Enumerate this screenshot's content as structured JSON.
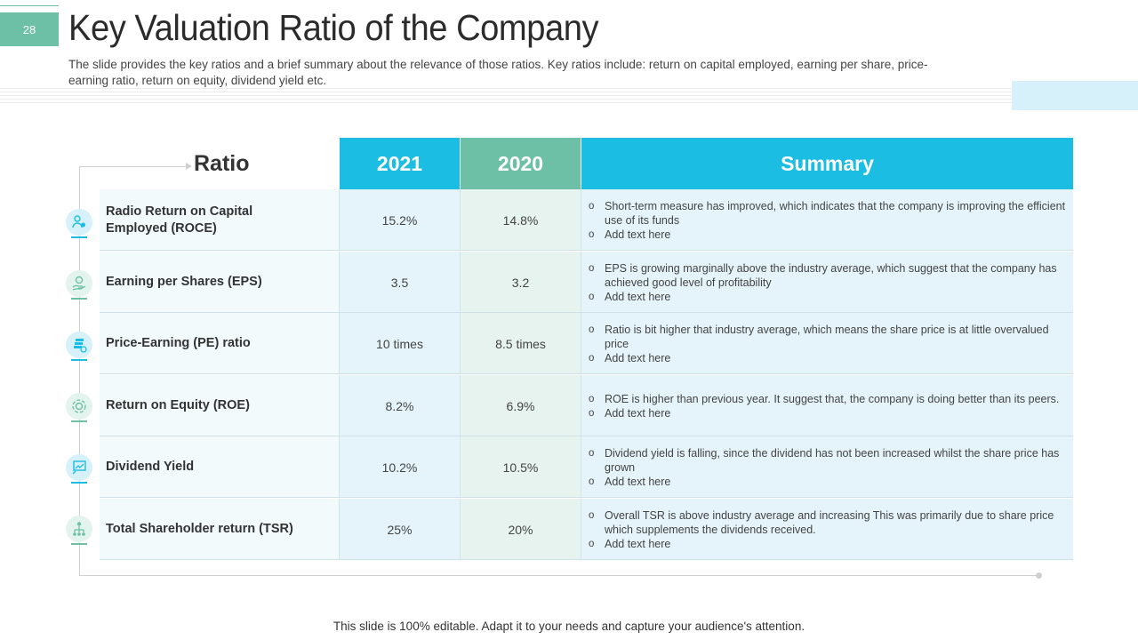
{
  "header": {
    "page_number": "28",
    "title": "Key Valuation Ratio of the Company",
    "subtitle": "The slide provides the key ratios and a brief summary about the relevance of those ratios. Key ratios include: return on capital employed, earning per share, price-earning ratio, return on equity, dividend yield etc."
  },
  "table": {
    "columns": [
      "Ratio",
      "2021",
      "2020",
      "Summary"
    ],
    "rows": [
      {
        "name": "Radio Return on Capital     Employed (ROCE)",
        "y2021": "15.2%",
        "y2020": "14.8%",
        "summary": [
          "Short-term measure has improved, which indicates that the company is improving the efficient use of its funds",
          "Add text here"
        ],
        "icon": "person-money-icon"
      },
      {
        "name": "Earning per Shares (EPS)",
        "y2021": "3.5",
        "y2020": "3.2",
        "summary": [
          "EPS is growing marginally above the industry average, which suggest that the company has achieved good level of profitability",
          "Add text here"
        ],
        "icon": "hand-coin-icon"
      },
      {
        "name": "Price-Earning (PE) ratio",
        "y2021": "10 times",
        "y2020": "8.5 times",
        "summary": [
          "Ratio is bit higher that industry average, which means the share price is at little overvalued price",
          "Add text here"
        ],
        "icon": "coin-stack-icon"
      },
      {
        "name": "Return on Equity (ROE)",
        "y2021": "8.2%",
        "y2020": "6.9%",
        "summary": [
          "ROE is higher than previous year. It suggest that, the company is doing better than its peers.",
          "Add text here"
        ],
        "icon": "money-cycle-icon"
      },
      {
        "name": "Dividend Yield",
        "y2021": "10.2%",
        "y2020": "10.5%",
        "summary": [
          "Dividend yield is falling, since the dividend has not been increased whilst the share price has grown",
          "Add text here"
        ],
        "icon": "presentation-chart-icon"
      },
      {
        "name": "Total Shareholder return (TSR)",
        "y2021": "25%",
        "y2020": "20%",
        "summary": [
          "Overall TSR is above industry average  and increasing This was primarily due to share price which supplements the dividends received.",
          "Add text here"
        ],
        "icon": "org-chart-icon"
      }
    ]
  },
  "footer": {
    "text": "This slide is 100% editable. Adapt it to your needs and capture your audience's attention."
  },
  "colors": {
    "teal": "#6dbfa5",
    "blue": "#1cbde2",
    "light_blue": "#e4f4fa",
    "light_teal": "#e6f3ef"
  }
}
